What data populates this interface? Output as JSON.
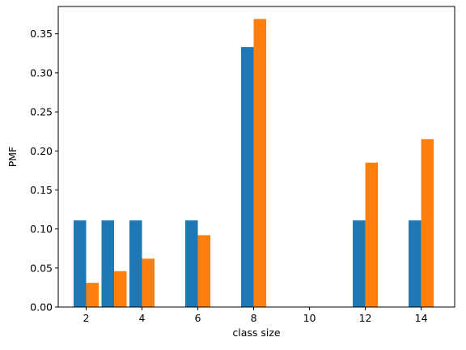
{
  "chart_data": {
    "type": "bar",
    "title": "",
    "xlabel": "class size",
    "ylabel": "PMF",
    "xlim": [
      1,
      15.2
    ],
    "ylim": [
      0,
      0.385
    ],
    "xticks": [
      2,
      4,
      6,
      8,
      10,
      12,
      14
    ],
    "xtick_labels": [
      "2",
      "4",
      "6",
      "8",
      "10",
      "12",
      "14"
    ],
    "yticks": [
      0.0,
      0.05,
      0.1,
      0.15,
      0.2,
      0.25,
      0.3,
      0.35
    ],
    "ytick_labels": [
      "0.00",
      "0.05",
      "0.10",
      "0.15",
      "0.20",
      "0.25",
      "0.30",
      "0.35"
    ],
    "grid": false,
    "legend": false,
    "series": [
      {
        "color": "#1f77b4",
        "points": [
          {
            "x": 2,
            "y": 0.111
          },
          {
            "x": 3,
            "y": 0.111
          },
          {
            "x": 4,
            "y": 0.111
          },
          {
            "x": 6,
            "y": 0.111
          },
          {
            "x": 8,
            "y": 0.333
          },
          {
            "x": 12,
            "y": 0.111
          },
          {
            "x": 14,
            "y": 0.111
          }
        ]
      },
      {
        "color": "#ff7f0e",
        "points": [
          {
            "x": 2,
            "y": 0.031
          },
          {
            "x": 3,
            "y": 0.046
          },
          {
            "x": 4,
            "y": 0.062
          },
          {
            "x": 6,
            "y": 0.092
          },
          {
            "x": 8,
            "y": 0.369
          },
          {
            "x": 12,
            "y": 0.185
          },
          {
            "x": 14,
            "y": 0.215
          }
        ]
      }
    ]
  }
}
